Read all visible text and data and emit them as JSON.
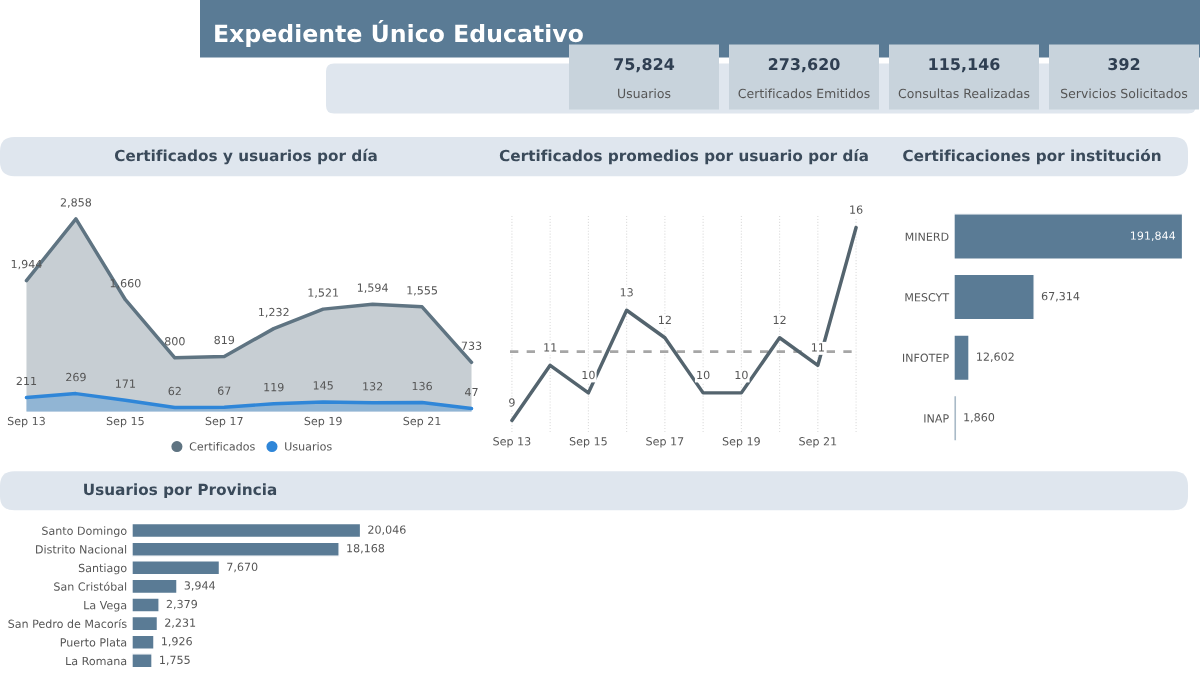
{
  "chart_data": [
    {
      "type": "other",
      "title": "Expediente Único Educativo",
      "annotations": [
        "75,824",
        "Usuarios",
        "273,620",
        "Certificados Emitidos",
        "115,146",
        "Consultas Realizadas",
        "392",
        "Servicios Solicitados"
      ]
    },
    {
      "type": "area",
      "title": "Certificados y usuarios por día",
      "categories": [
        "Sep 13",
        null,
        "Sep 15",
        null,
        "Sep 17",
        null,
        "Sep 19",
        null,
        "Sep 21",
        null
      ],
      "tick_labels": "x",
      "legend": "bottom",
      "series": [
        {
          "name": "Certificados",
          "color": "#5f7482",
          "values": [
            1944,
            2858,
            1660,
            800,
            819,
            1232,
            1521,
            1594,
            1555,
            733
          ],
          "value_labels": [
            "1,944",
            "2,858",
            "1,660",
            "800",
            "819",
            "1,232",
            "1,521",
            "1,594",
            "1,555",
            "733"
          ]
        },
        {
          "name": "Usuarios",
          "color": "#2f86d8",
          "values": [
            211,
            269,
            171,
            62,
            67,
            119,
            145,
            132,
            136,
            47
          ],
          "value_labels": [
            "211",
            "269",
            "171",
            "62",
            "67",
            "119",
            "145",
            "132",
            "136",
            "47"
          ]
        }
      ]
    },
    {
      "type": "line",
      "title": "Certificados promedios por usuario por día",
      "categories": [
        "Sep 13",
        null,
        "Sep 15",
        null,
        "Sep 17",
        null,
        "Sep 19",
        null,
        "Sep 21",
        null
      ],
      "tick_labels": "x",
      "grid": "x",
      "data_labels": true,
      "series": [
        {
          "color": "#54646e",
          "values": [
            9,
            11,
            10,
            13,
            12,
            10,
            10,
            12,
            11,
            16
          ]
        }
      ],
      "ref_lines": [
        {
          "axis": "y",
          "value": 11.5,
          "color": "#a6a6a6",
          "line_style": "dashed"
        }
      ]
    },
    {
      "type": "bar",
      "orientation": "horizontal",
      "title": "Certificaciones por institución",
      "categories": [
        "MINERD",
        "MESCYT",
        "INFOTEP",
        "INAP"
      ],
      "values": [
        191844,
        67314,
        12602,
        1860
      ],
      "value_labels": [
        "191,844",
        "67,314",
        "12,602",
        "1,860"
      ],
      "color": "#5a7b95",
      "tick_labels": "y"
    },
    {
      "type": "bar",
      "orientation": "horizontal",
      "title": "Usuarios por Provincia",
      "categories": [
        "Santo Domingo",
        "Distrito Nacional",
        "Santiago",
        "San Cristóbal",
        "La Vega",
        "San Pedro de Macorís",
        "Puerto Plata",
        "La Romana"
      ],
      "values": [
        20046,
        18168,
        7670,
        3944,
        2379,
        2231,
        1926,
        1755
      ],
      "value_labels": [
        "20,046",
        "18,168",
        "7,670",
        "3,944",
        "2,379",
        "2,231",
        "1,926",
        "1,755"
      ],
      "color": "#5a7b95",
      "tick_labels": "y"
    }
  ]
}
